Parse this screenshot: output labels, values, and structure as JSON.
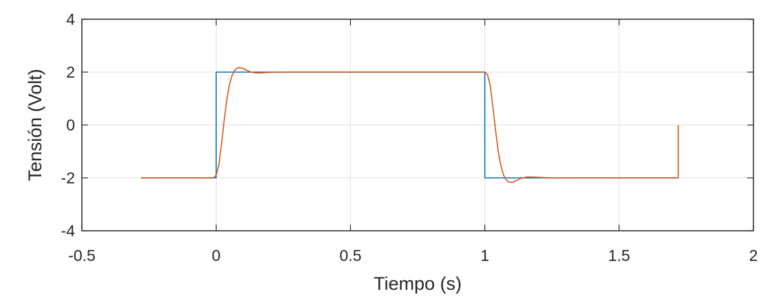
{
  "chart_data": {
    "type": "line",
    "title": "",
    "xlabel": "Tiempo (s)",
    "ylabel": "Tensión (Volt)",
    "xlim": [
      -0.5,
      2
    ],
    "ylim": [
      -4,
      4
    ],
    "xticks": [
      -0.5,
      0,
      0.5,
      1,
      1.5,
      2
    ],
    "xtick_labels": [
      "-0.5",
      "0",
      "0.5",
      "1",
      "1.5",
      "2"
    ],
    "yticks": [
      -4,
      -2,
      0,
      2,
      4
    ],
    "ytick_labels": [
      "-4",
      "-2",
      "0",
      "2",
      "4"
    ],
    "grid": true,
    "legend": "none",
    "series": [
      {
        "color": "#0072BD",
        "x": [
          -0.28,
          0,
          0,
          1,
          1,
          1.72
        ],
        "y": [
          -2,
          -2,
          2,
          2,
          -2,
          -2
        ]
      },
      {
        "color": "#D95319",
        "x": [
          -0.28,
          -0.01,
          0,
          0.01,
          0.02,
          0.03,
          0.04,
          0.05,
          0.06,
          0.07,
          0.08,
          0.09,
          0.1,
          0.11,
          0.12,
          0.13,
          0.14,
          0.15,
          0.16,
          0.18,
          0.2,
          0.25,
          1,
          1.01,
          1.02,
          1.03,
          1.04,
          1.05,
          1.06,
          1.07,
          1.08,
          1.09,
          1.1,
          1.11,
          1.12,
          1.13,
          1.14,
          1.15,
          1.16,
          1.18,
          1.2,
          1.25,
          1.72,
          1.72
        ],
        "y": [
          -2,
          -2,
          -1.9,
          -1.5,
          -0.7,
          0.2,
          1.0,
          1.55,
          1.9,
          2.08,
          2.16,
          2.17,
          2.14,
          2.09,
          2.04,
          2.0,
          1.98,
          1.97,
          1.97,
          1.98,
          1.99,
          2.0,
          2.0,
          1.9,
          1.5,
          0.7,
          -0.2,
          -1.0,
          -1.55,
          -1.9,
          -2.08,
          -2.16,
          -2.17,
          -2.14,
          -2.09,
          -2.04,
          -2.0,
          -1.98,
          -1.97,
          -1.97,
          -1.98,
          -2.0,
          -2.0,
          0
        ]
      }
    ]
  }
}
